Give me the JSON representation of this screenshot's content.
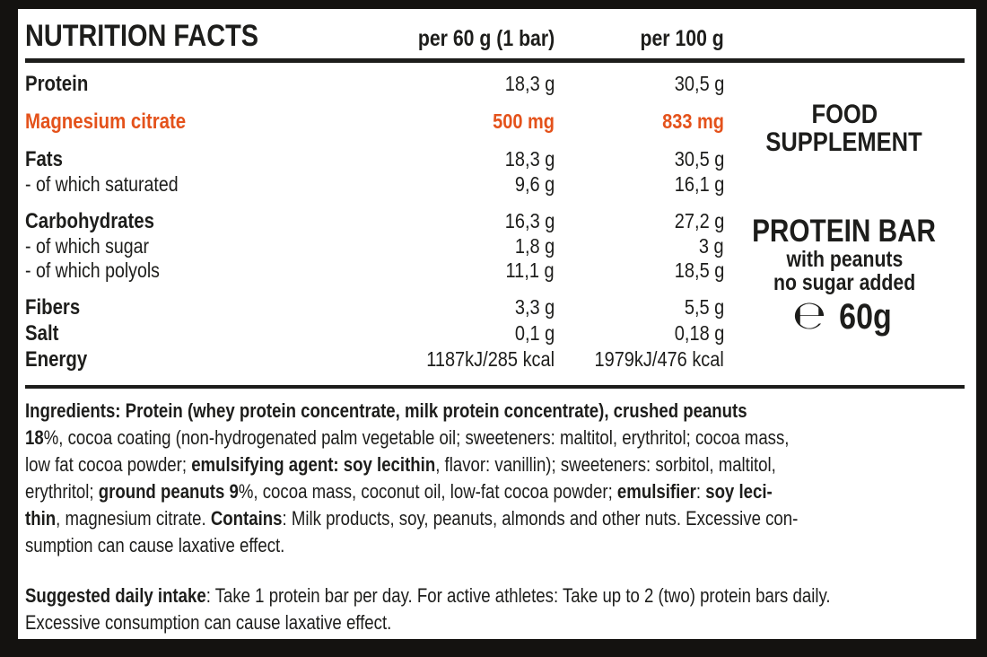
{
  "colors": {
    "accent": "#e4521b",
    "text": "#1d1d1b",
    "frame": "#141210"
  },
  "header": {
    "title": "NUTRITION FACTS",
    "col_per_bar": "per 60 g (1 bar)",
    "col_per_100": "per 100 g"
  },
  "table": {
    "rows": [
      {
        "label": "Protein",
        "per_bar": "18,3 g",
        "per_100": "30,5 g"
      },
      {
        "label": "Magnesium citrate",
        "per_bar": "500 mg",
        "per_100": "833 mg"
      },
      {
        "label": "Fats",
        "per_bar": "18,3 g",
        "per_100": "30,5 g"
      },
      {
        "label": "- of which saturated",
        "per_bar": "9,6 g",
        "per_100": "16,1 g"
      },
      {
        "label": "Carbohydrates",
        "per_bar": "16,3 g",
        "per_100": "27,2 g"
      },
      {
        "label": "- of which sugar",
        "per_bar": "1,8 g",
        "per_100": "3 g"
      },
      {
        "label": "- of which polyols",
        "per_bar": "11,1 g",
        "per_100": "18,5 g"
      },
      {
        "label": "Fibers",
        "per_bar": "3,3 g",
        "per_100": "5,5 g"
      },
      {
        "label": "Salt",
        "per_bar": "0,1 g",
        "per_100": "0,18 g"
      },
      {
        "label": "Energy",
        "per_bar": "1187kJ/285 kcal",
        "per_100": "1979kJ/476 kcal"
      }
    ]
  },
  "side_panel": {
    "category_line1": "FOOD",
    "category_line2": "SUPPLEMENT",
    "product_name": "PROTEIN BAR",
    "feature_1": "with peanuts",
    "feature_2": "no sugar added",
    "estimated_sign": "℮",
    "net_weight": "60g"
  },
  "ingredients": {
    "segments": [
      {
        "b": true,
        "t": "Ingredients: Protein (whey protein concentrate, milk protein concentrate), crushed peanuts\n18"
      },
      {
        "b": false,
        "t": "%, cocoa coating (non-hydrogenated palm vegetable oil; sweeteners: maltitol, erythritol; cocoa mass,\nlow fat cocoa powder; "
      },
      {
        "b": true,
        "t": "emulsifying agent: soy lecithin"
      },
      {
        "b": false,
        "t": ", flavor: vanillin); sweeteners: sorbitol, maltitol,\nerythritol; "
      },
      {
        "b": true,
        "t": "ground peanuts 9"
      },
      {
        "b": false,
        "t": "%, cocoa mass, coconut oil, low-fat cocoa powder; "
      },
      {
        "b": true,
        "t": "emulsifier"
      },
      {
        "b": false,
        "t": ": "
      },
      {
        "b": true,
        "t": "soy leci-\nthin"
      },
      {
        "b": false,
        "t": ", magnesium citrate. "
      },
      {
        "b": true,
        "t": "Contains"
      },
      {
        "b": false,
        "t": ": Milk products, soy, peanuts, almonds and other nuts. Excessive con-\nsumption can cause laxative effect."
      }
    ]
  },
  "suggested_intake": {
    "segments": [
      {
        "b": true,
        "t": "Suggested daily intake"
      },
      {
        "b": false,
        "t": ": Take 1 protein bar per day. For active athletes: Take up to 2 (two) protein bars daily.\nExcessive consumption can cause laxative effect."
      }
    ]
  }
}
